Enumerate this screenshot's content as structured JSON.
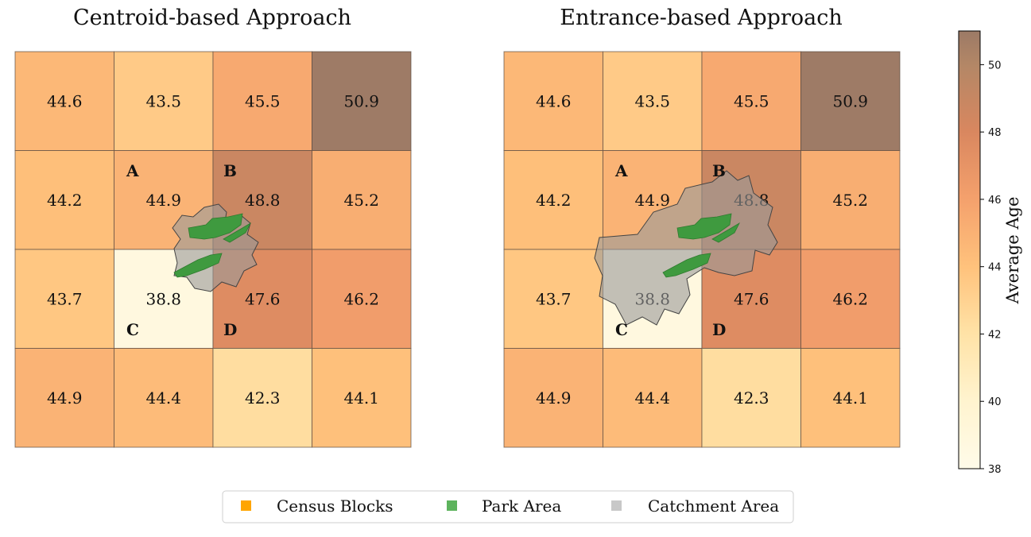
{
  "colorbar": {
    "label": "Average Age",
    "min": 38,
    "max": 51,
    "ticks": [
      "38",
      "40",
      "42",
      "44",
      "46",
      "48",
      "50"
    ],
    "tick_values": [
      38,
      40,
      42,
      44,
      46,
      48,
      50
    ],
    "colors": [
      "#fffbe9",
      "#ffe2a6",
      "#ffc27c",
      "#f4a06c",
      "#d9875f",
      "#b48766",
      "#9c7a66"
    ]
  },
  "panels": [
    {
      "title": "Centroid-based Approach",
      "grid_values": [
        [
          "44.6",
          "43.5",
          "45.5",
          "50.9"
        ],
        [
          "44.2",
          "44.9",
          "48.8",
          "45.2"
        ],
        [
          "43.7",
          "38.8",
          "47.6",
          "46.2"
        ],
        [
          "44.9",
          "44.4",
          "42.3",
          "44.1"
        ]
      ],
      "block_labels": [
        "A",
        "B",
        "C",
        "D"
      ],
      "catchment": "small"
    },
    {
      "title": "Entrance-based Approach",
      "grid_values": [
        [
          "44.6",
          "43.5",
          "45.5",
          "50.9"
        ],
        [
          "44.2",
          "44.9",
          "48.8",
          "45.2"
        ],
        [
          "43.7",
          "38.8",
          "47.6",
          "46.2"
        ],
        [
          "44.9",
          "44.4",
          "42.3",
          "44.1"
        ]
      ],
      "block_labels": [
        "A",
        "B",
        "C",
        "D"
      ],
      "catchment": "large"
    }
  ],
  "legend": [
    {
      "label": "Census Blocks",
      "color": "#ffa500"
    },
    {
      "label": "Park Area",
      "color": "#5db35d"
    },
    {
      "label": "Catchment Area",
      "color": "#c8c8c8"
    }
  ]
}
